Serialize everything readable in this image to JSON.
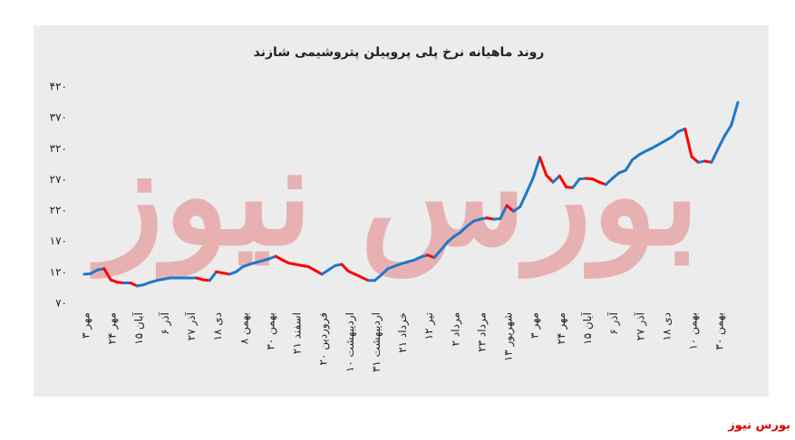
{
  "chart_data": {
    "type": "line",
    "title": "روند ماهیانه نرخ پلی پروپیلن پتروشیمی شازند",
    "watermark": "بورس نیوز",
    "source": "بورس نیوز",
    "categories": [
      "۳ مهر",
      null,
      null,
      null,
      "۲۴ مهر",
      null,
      null,
      null,
      "۱۵ آبان",
      null,
      null,
      null,
      "۶ آذر",
      null,
      null,
      null,
      "۲۷ آذر",
      null,
      null,
      null,
      "۱۸ دی",
      null,
      null,
      null,
      "۸ بهمن",
      null,
      null,
      null,
      "۳۰ بهمن",
      null,
      null,
      null,
      "۲۱ اسفند",
      null,
      null,
      null,
      "۲۰ فروردین",
      null,
      null,
      null,
      "۱۰ اردیبهشت",
      null,
      null,
      null,
      "۳۱ اردیبهشت",
      null,
      null,
      null,
      "۲۱ خرداد",
      null,
      null,
      null,
      "۱۲ تیر",
      null,
      null,
      null,
      "۲ مرداد",
      null,
      null,
      null,
      "۲۳ مرداد",
      null,
      null,
      null,
      "۱۳ شهریور",
      null,
      null,
      null,
      "۳ مهر",
      null,
      null,
      null,
      "۲۴ مهر",
      null,
      null,
      null,
      "۱۵ آبان",
      null,
      null,
      null,
      "۶ آذر",
      null,
      null,
      null,
      "۲۷ آذر",
      null,
      null,
      null,
      "۱۸ دی",
      null,
      null,
      null,
      "۱۰ بهمن",
      null,
      null,
      null,
      "۳۰ بهمن",
      null,
      null,
      null
    ],
    "values": [
      117,
      118,
      124,
      126,
      108,
      104,
      103,
      103,
      98,
      100,
      104,
      107,
      109,
      111,
      111,
      111,
      111,
      111,
      108,
      107,
      121,
      119,
      117,
      121,
      129,
      133,
      136,
      139,
      142,
      146,
      140,
      135,
      133,
      131,
      129,
      123,
      117,
      124,
      131,
      133,
      122,
      117,
      112,
      107,
      107,
      116,
      126,
      130,
      134,
      137,
      140,
      145,
      148,
      144,
      156,
      169,
      178,
      185,
      195,
      203,
      206,
      208,
      206,
      207,
      228,
      219,
      226,
      249,
      273,
      306,
      277,
      266,
      276,
      258,
      257,
      271,
      272,
      271,
      266,
      262,
      272,
      281,
      285,
      302,
      310,
      316,
      321,
      327,
      333,
      339,
      348,
      352,
      307,
      298,
      300,
      298,
      320,
      341,
      358,
      395
    ],
    "up_color": "#1f78c8",
    "down_color": "#ff0000",
    "ylim": [
      70,
      420
    ],
    "yticks": [
      {
        "value": 70,
        "label": "۷۰"
      },
      {
        "value": 120,
        "label": "۱۲۰"
      },
      {
        "value": 170,
        "label": "۱۷۰"
      },
      {
        "value": 220,
        "label": "۲۲۰"
      },
      {
        "value": 270,
        "label": "۲۷۰"
      },
      {
        "value": 320,
        "label": "۳۲۰"
      },
      {
        "value": 370,
        "label": "۳۷۰"
      },
      {
        "value": 420,
        "label": "۴۲۰"
      }
    ],
    "grid": false
  }
}
